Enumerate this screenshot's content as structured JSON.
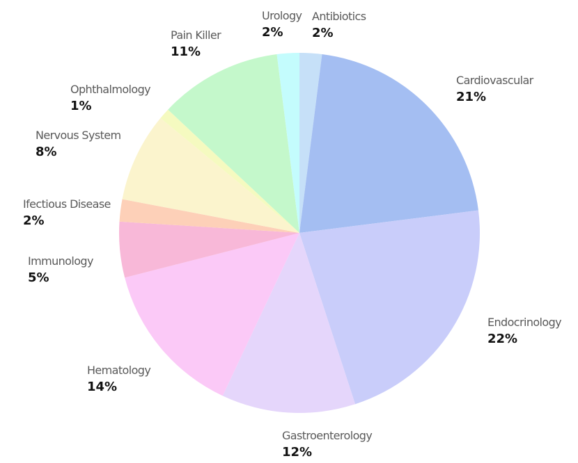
{
  "chart_data": {
    "type": "pie",
    "title": "",
    "start": "top, clockwise",
    "slices": [
      {
        "label": "Antibiotics",
        "value_label": "2%",
        "value": 2,
        "color": "#c6e0f8"
      },
      {
        "label": "Cardiovascular",
        "value_label": "21%",
        "value": 21,
        "color": "#a4bef2"
      },
      {
        "label": "Endocrinology",
        "value_label": "22%",
        "value": 22,
        "color": "#c9cdfa"
      },
      {
        "label": "Gastroenterology",
        "value_label": "12%",
        "value": 12,
        "color": "#e5d6fb"
      },
      {
        "label": "Hematology",
        "value_label": "14%",
        "value": 14,
        "color": "#fbc9f7"
      },
      {
        "label": "Immunology",
        "value_label": "5%",
        "value": 5,
        "color": "#f8b8d8"
      },
      {
        "label": "Ifectious Disease",
        "value_label": "2%",
        "value": 2,
        "color": "#fdd0b8"
      },
      {
        "label": "Nervous System",
        "value_label": "8%",
        "value": 8,
        "color": "#fbf4cd"
      },
      {
        "label": "Ophthalmology",
        "value_label": "1%",
        "value": 1,
        "color": "#f5fac0"
      },
      {
        "label": "Pain Killer",
        "value_label": "11%",
        "value": 11,
        "color": "#c4f8cb"
      },
      {
        "label": "Urology",
        "value_label": "2%",
        "value": 2,
        "color": "#c4fcfd"
      }
    ]
  }
}
